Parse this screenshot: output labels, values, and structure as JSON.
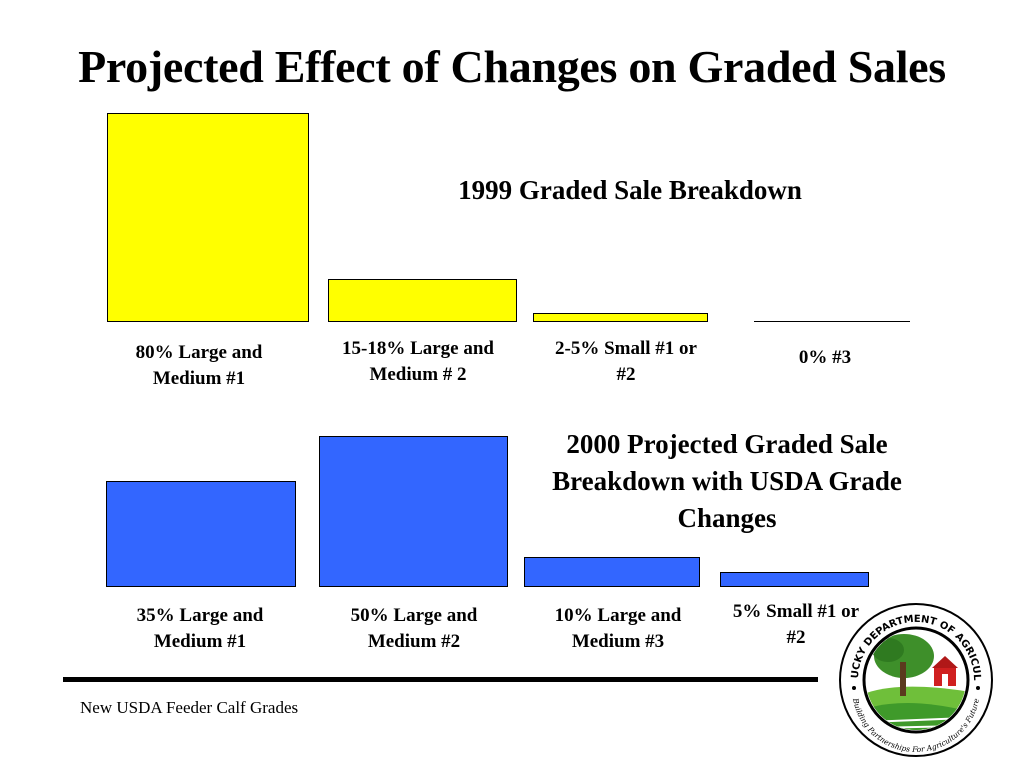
{
  "slide": {
    "title": "Projected Effect of Changes on Graded Sales",
    "footer": "New USDA Feeder Calf Grades",
    "logo": {
      "org": "KENTUCKY DEPARTMENT OF AGRICULTURE",
      "tagline": "Building Partnerships For Agriculture's Future"
    }
  },
  "colors": {
    "chart1_bar": "#FFFF00",
    "chart2_bar": "#3366FF"
  },
  "chart_data": [
    {
      "type": "bar",
      "title": "1999 Graded Sale Breakdown",
      "categories": [
        "80% Large and Medium #1",
        "15-18% Large and Medium # 2",
        "2-5% Small #1 or #2",
        "0% #3"
      ],
      "values": [
        80,
        16.5,
        3.5,
        0
      ],
      "value_unit": "%",
      "bar_color": "#FFFF00"
    },
    {
      "type": "bar",
      "title": "2000 Projected Graded Sale Breakdown with USDA Grade Changes",
      "categories": [
        "35% Large and Medium #1",
        "50% Large and Medium #2",
        "10% Large and Medium #3",
        "5% Small #1 or #2"
      ],
      "values": [
        35,
        50,
        10,
        5
      ],
      "value_unit": "%",
      "bar_color": "#3366FF"
    }
  ]
}
